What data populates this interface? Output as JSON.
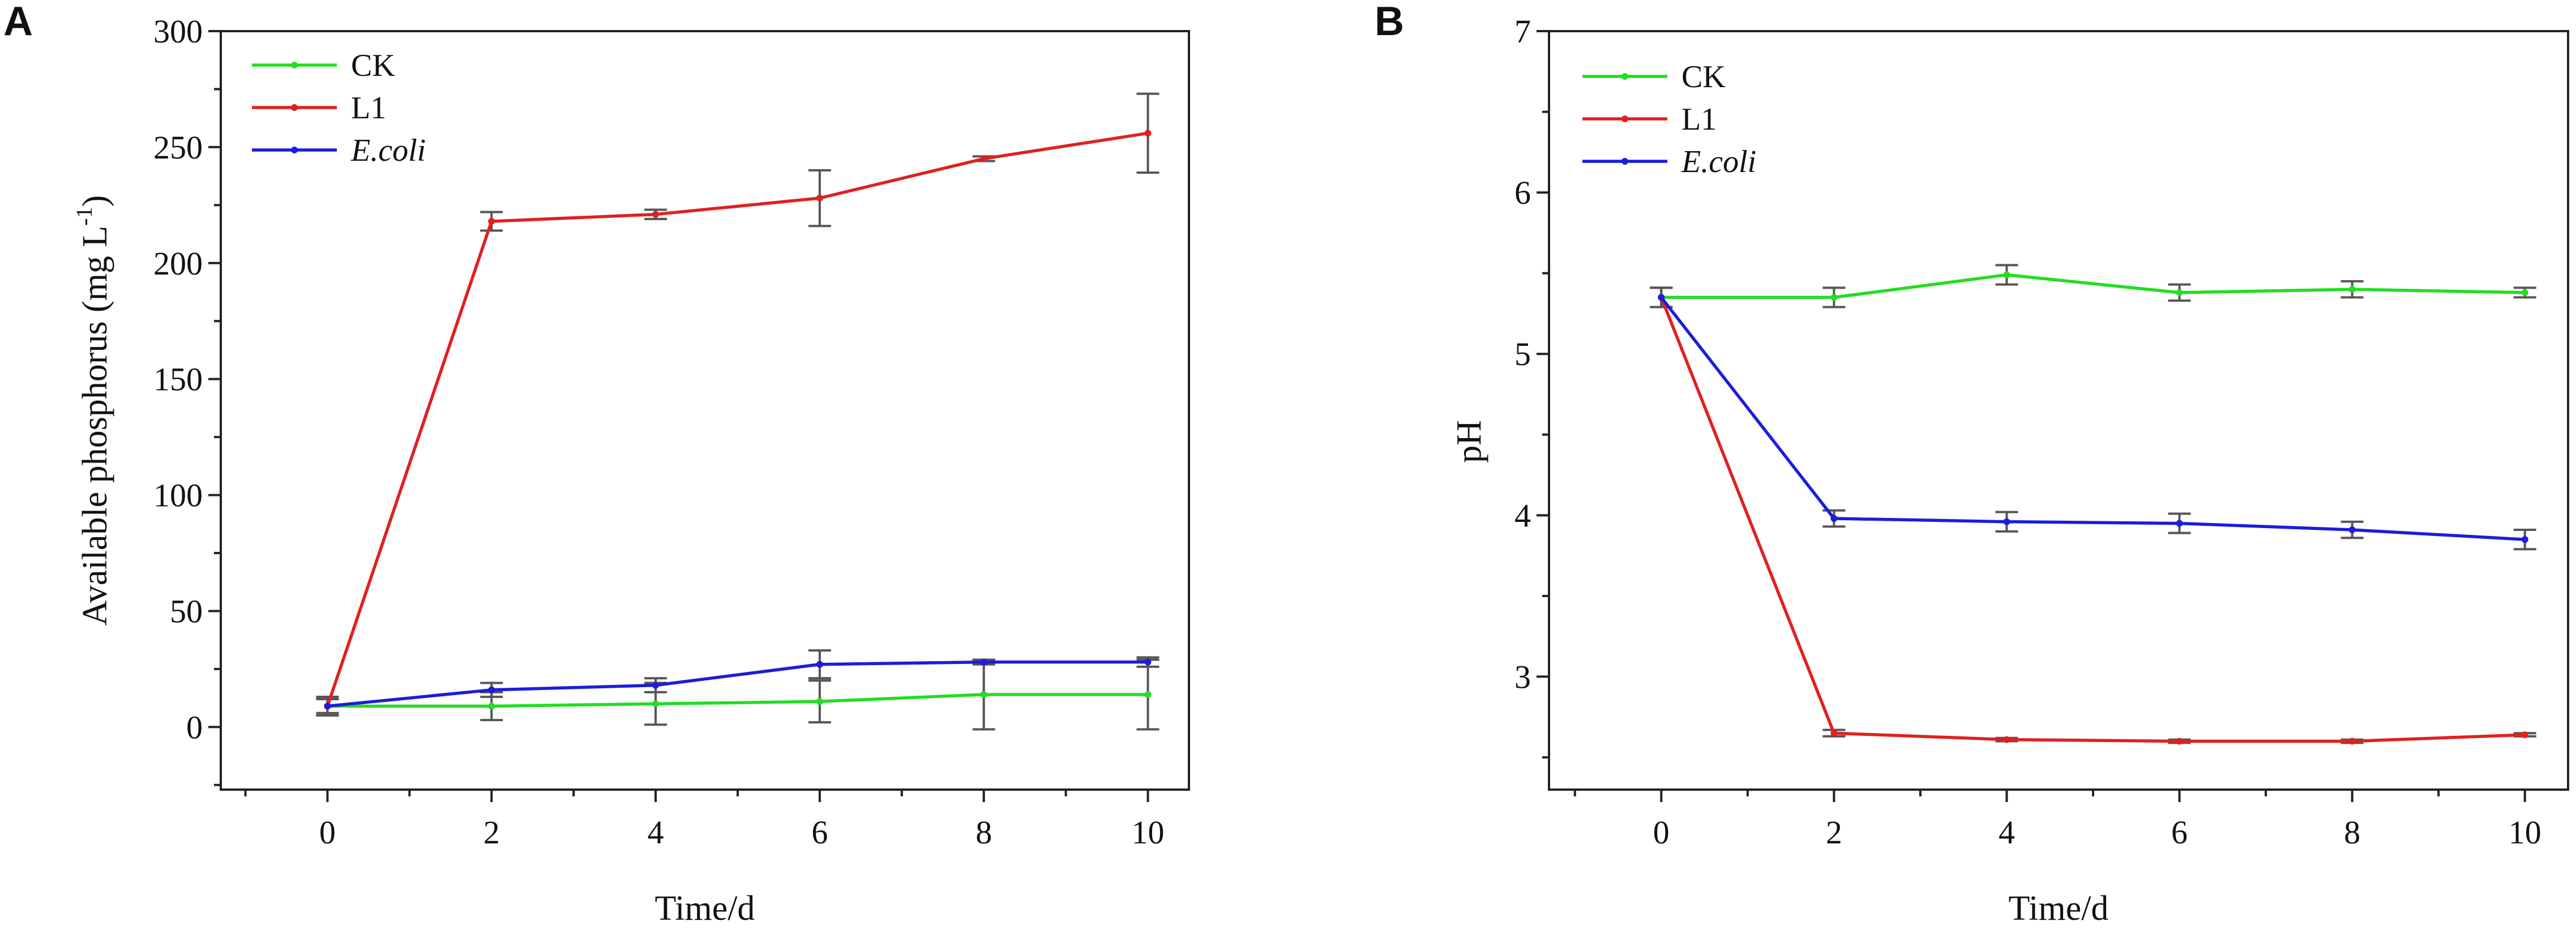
{
  "colors": {
    "CK": "#22dd22",
    "L1": "#e02020",
    "E.coli": "#1c1cdc"
  },
  "chart_data": [
    {
      "panel": "A",
      "type": "line",
      "xlabel": "Time/d",
      "ylabel_main": "Available phosphorus (mg L",
      "ylabel_sup": "-1",
      "ylabel_close": ")",
      "xlim": [
        -1.3,
        10.5
      ],
      "ylim": [
        -27,
        300
      ],
      "xticks": [
        0,
        2,
        4,
        6,
        8,
        10
      ],
      "xtick_labels": [
        "0",
        "2",
        "4",
        "6",
        "8",
        "10"
      ],
      "yticks": [
        0,
        50,
        100,
        150,
        200,
        250,
        300
      ],
      "ytick_labels": [
        "0",
        "50",
        "100",
        "150",
        "200",
        "250",
        "300"
      ],
      "legend_position": "top-left",
      "series": [
        {
          "name": "CK",
          "color_key": "CK",
          "italic": false,
          "x": [
            0,
            2,
            4,
            6,
            8,
            10
          ],
          "y": [
            9,
            9,
            10,
            11,
            14,
            14
          ],
          "err": [
            4,
            6,
            9,
            9,
            15,
            15
          ]
        },
        {
          "name": "L1",
          "color_key": "L1",
          "italic": false,
          "x": [
            0,
            2,
            4,
            6,
            8,
            10
          ],
          "y": [
            9,
            218,
            221,
            228,
            245,
            256
          ],
          "err": [
            4,
            4,
            2,
            12,
            1,
            17
          ]
        },
        {
          "name": "E.coli",
          "color_key": "E.coli",
          "italic": true,
          "x": [
            0,
            2,
            4,
            6,
            8,
            10
          ],
          "y": [
            9,
            16,
            18,
            27,
            28,
            28
          ],
          "err": [
            3,
            3,
            3,
            6,
            1,
            2
          ]
        }
      ]
    },
    {
      "panel": "B",
      "type": "line",
      "xlabel": "Time/d",
      "ylabel_main": "pH",
      "ylabel_sup": "",
      "ylabel_close": "",
      "xlim": [
        -1.3,
        10.5
      ],
      "ylim": [
        2.3,
        7
      ],
      "xticks": [
        0,
        2,
        4,
        6,
        8,
        10
      ],
      "xtick_labels": [
        "0",
        "2",
        "4",
        "6",
        "8",
        "10"
      ],
      "yticks": [
        3,
        4,
        5,
        6,
        7
      ],
      "ytick_labels": [
        "3",
        "4",
        "5",
        "6",
        "7"
      ],
      "legend_position": "top-left",
      "series": [
        {
          "name": "CK",
          "color_key": "CK",
          "italic": false,
          "x": [
            0,
            2,
            4,
            6,
            8,
            10
          ],
          "y": [
            5.35,
            5.35,
            5.49,
            5.38,
            5.4,
            5.38
          ],
          "err": [
            0.06,
            0.06,
            0.06,
            0.05,
            0.05,
            0.03
          ]
        },
        {
          "name": "L1",
          "color_key": "L1",
          "italic": false,
          "x": [
            0,
            2,
            4,
            6,
            8,
            10
          ],
          "y": [
            5.35,
            2.65,
            2.61,
            2.6,
            2.6,
            2.64
          ],
          "err": [
            0.06,
            0.02,
            0.01,
            0.01,
            0.01,
            0.01
          ]
        },
        {
          "name": "E.coli",
          "color_key": "E.coli",
          "italic": true,
          "x": [
            0,
            2,
            4,
            6,
            8,
            10
          ],
          "y": [
            5.35,
            3.98,
            3.96,
            3.95,
            3.91,
            3.85
          ],
          "err": [
            0.06,
            0.05,
            0.06,
            0.06,
            0.05,
            0.06
          ]
        }
      ]
    }
  ]
}
